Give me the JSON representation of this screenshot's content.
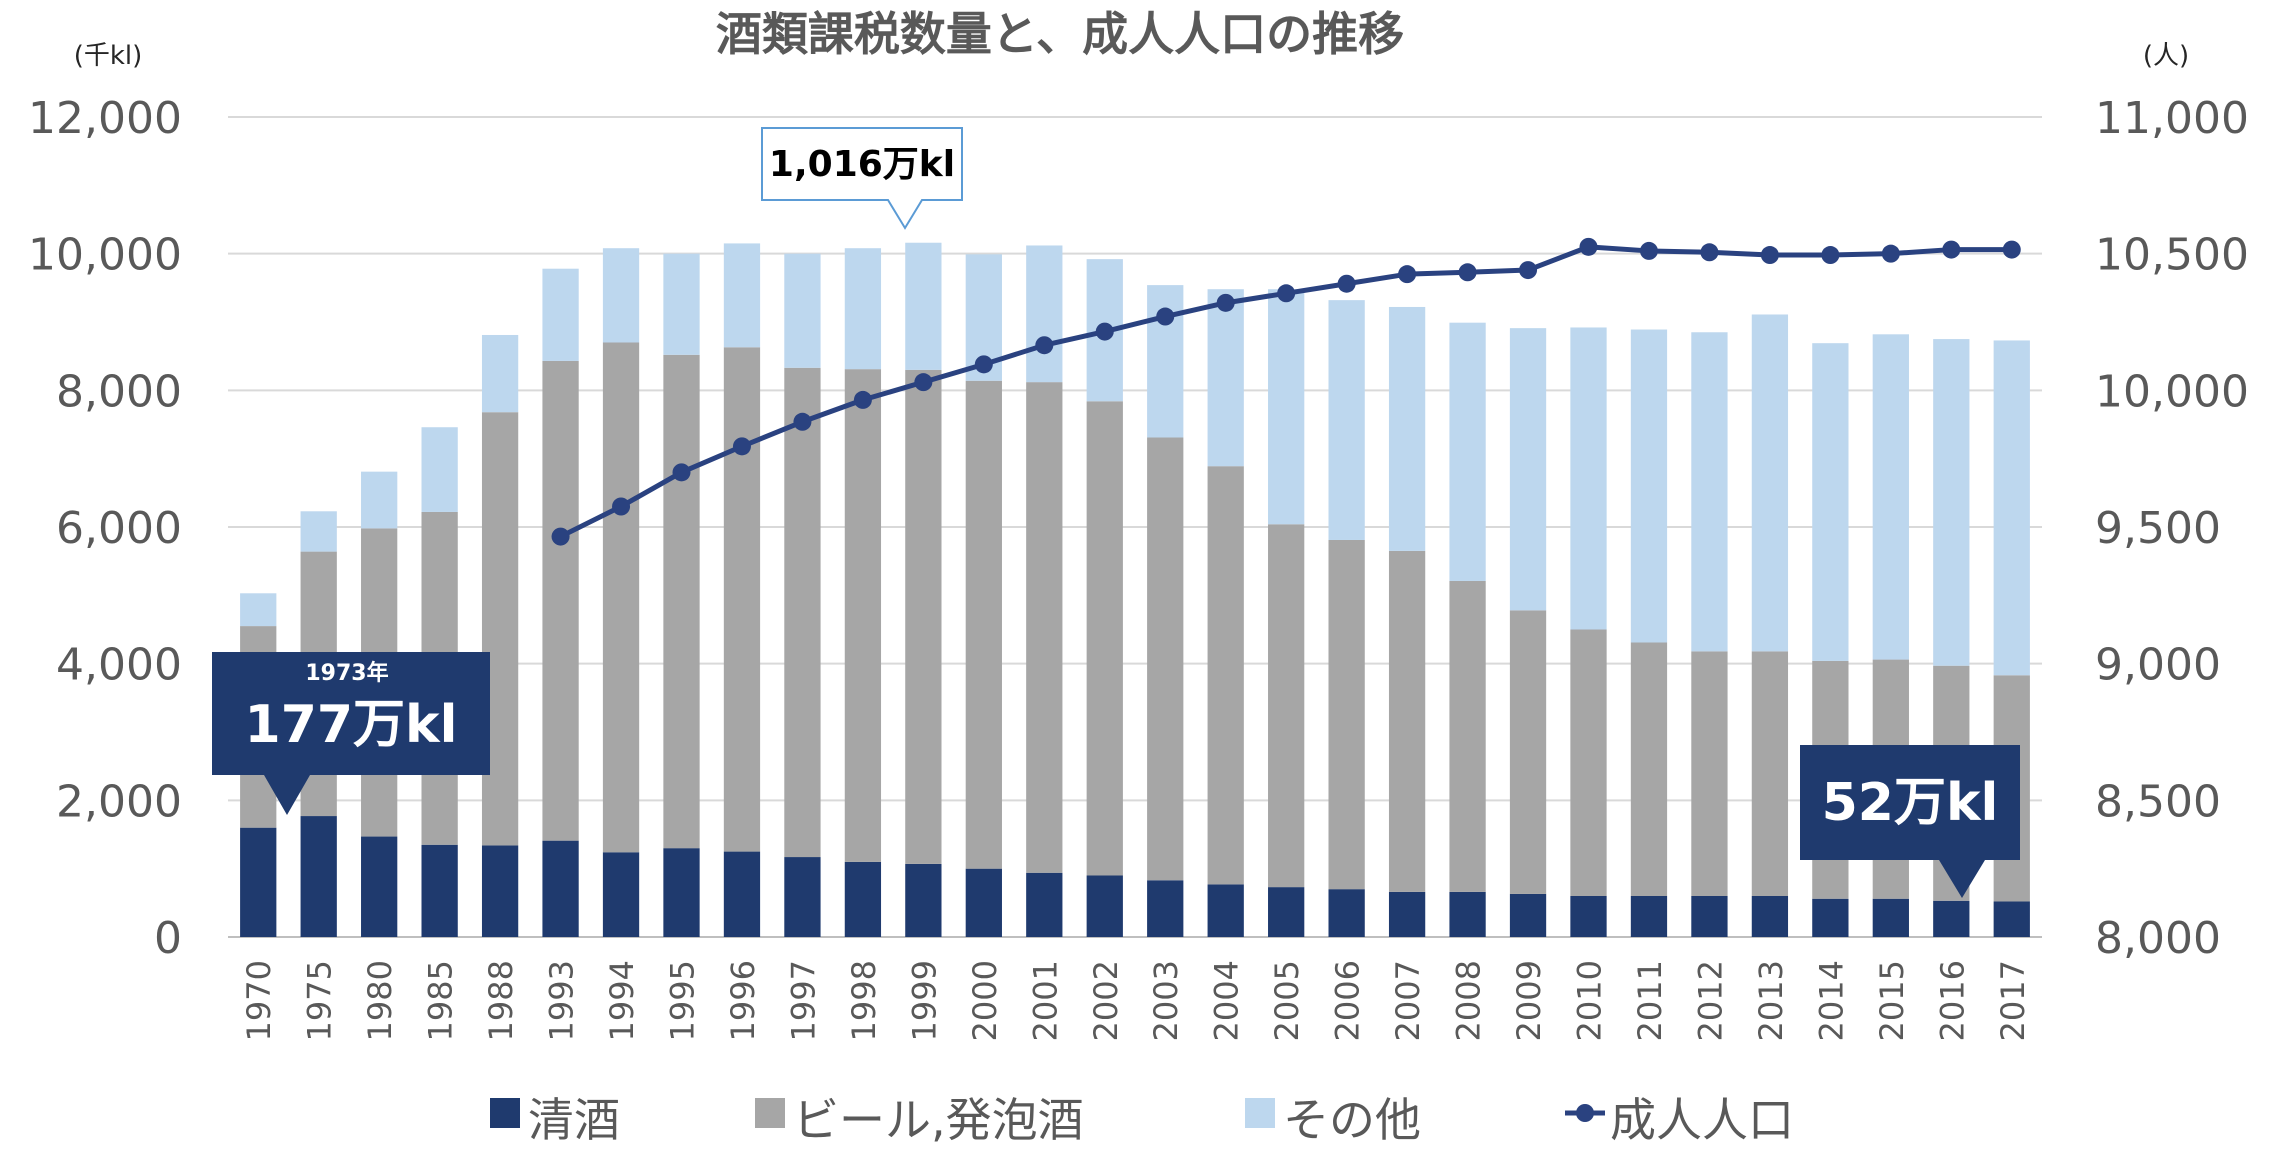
{
  "chart_data": {
    "type": "bar",
    "stacked": true,
    "title": "酒類課税数量と、成人人口の推移",
    "left_axis": {
      "unit": "(千kl)",
      "min": 0,
      "max": 12000,
      "ticks": [
        "0",
        "2,000",
        "4,000",
        "6,000",
        "8,000",
        "10,000",
        "12,000"
      ]
    },
    "right_axis": {
      "unit": "(人)",
      "min": 8000,
      "max": 11000,
      "ticks": [
        "8,000",
        "8,500",
        "9,000",
        "9,500",
        "10,000",
        "10,500",
        "11,000"
      ]
    },
    "grid": true,
    "legend_position": "bottom",
    "categories": [
      "1970",
      "1975",
      "1980",
      "1985",
      "1988",
      "1993",
      "1994",
      "1995",
      "1996",
      "1997",
      "1998",
      "1999",
      "2000",
      "2001",
      "2002",
      "2003",
      "2004",
      "2005",
      "2006",
      "2007",
      "2008",
      "2009",
      "2010",
      "2011",
      "2012",
      "2013",
      "2014",
      "2015",
      "2016",
      "2017"
    ],
    "series": [
      {
        "name": "清酒",
        "type": "bar",
        "axis": "left",
        "color": "#1f3a6e",
        "values": [
          1600,
          1770,
          1470,
          1350,
          1340,
          1410,
          1240,
          1300,
          1250,
          1170,
          1100,
          1070,
          1000,
          940,
          900,
          830,
          770,
          730,
          700,
          660,
          660,
          630,
          600,
          600,
          600,
          600,
          560,
          560,
          530,
          520
        ]
      },
      {
        "name": "ビール,発泡酒",
        "type": "bar",
        "axis": "left",
        "color": "#a6a6a6",
        "values": [
          2950,
          3870,
          4510,
          4870,
          6340,
          7020,
          7460,
          7220,
          7380,
          7160,
          7210,
          7230,
          7140,
          7180,
          6940,
          6480,
          6120,
          5310,
          5110,
          4990,
          4550,
          4150,
          3900,
          3710,
          3580,
          3580,
          3480,
          3500,
          3440,
          3310
        ]
      },
      {
        "name": "その他",
        "type": "bar",
        "axis": "left",
        "color": "#bdd7ee",
        "values": [
          480,
          590,
          830,
          1240,
          1130,
          1350,
          1380,
          1480,
          1520,
          1670,
          1770,
          1860,
          1850,
          2000,
          2080,
          2230,
          2590,
          3440,
          3510,
          3570,
          3780,
          4130,
          4420,
          4580,
          4670,
          4930,
          4650,
          4760,
          4780,
          4900
        ]
      },
      {
        "name": "成人人口",
        "type": "line",
        "axis": "right",
        "color": "#2a4280",
        "values": [
          null,
          null,
          null,
          null,
          null,
          9465,
          9575,
          9700,
          9795,
          9885,
          9965,
          10030,
          10095,
          10165,
          10215,
          10270,
          10320,
          10355,
          10390,
          10425,
          10432,
          10440,
          10525,
          10510,
          10505,
          10495,
          10495,
          10500,
          10515,
          10515
        ]
      }
    ],
    "annotations": [
      {
        "id": "a1973",
        "line1": "1973年",
        "line2": "177万kl"
      },
      {
        "id": "a1999",
        "line1": "1,016万kl"
      },
      {
        "id": "a2017",
        "line1": "52万kl"
      }
    ]
  }
}
